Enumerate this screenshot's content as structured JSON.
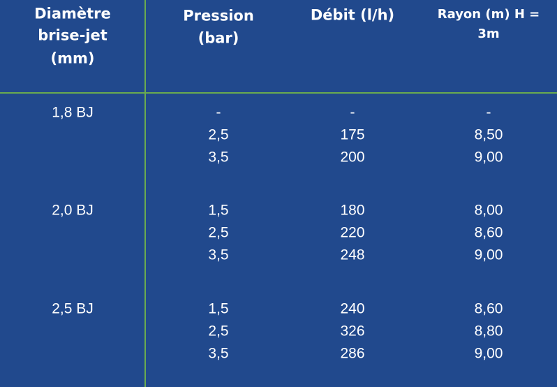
{
  "table": {
    "headers": [
      [
        "Diamètre",
        "brise-jet",
        "(mm)"
      ],
      [
        "Pression",
        "(bar)"
      ],
      [
        "Débit (l/h)"
      ],
      [
        "Rayon (m) H =",
        "3m"
      ]
    ],
    "groups": [
      {
        "diameter": "1,8 BJ",
        "rows": [
          [
            "-",
            "-",
            "-"
          ],
          [
            "2,5",
            "175",
            "8,50"
          ],
          [
            "3,5",
            "200",
            "9,00"
          ]
        ]
      },
      {
        "diameter": "2,0 BJ",
        "rows": [
          [
            "1,5",
            "180",
            "8,00"
          ],
          [
            "2,5",
            "220",
            "8,60"
          ],
          [
            "3,5",
            "248",
            "9,00"
          ]
        ]
      },
      {
        "diameter": "2,5 BJ",
        "rows": [
          [
            "1,5",
            "240",
            "8,60"
          ],
          [
            "2,5",
            "326",
            "8,80"
          ],
          [
            "3,5",
            "286",
            "9,00"
          ]
        ]
      }
    ]
  }
}
